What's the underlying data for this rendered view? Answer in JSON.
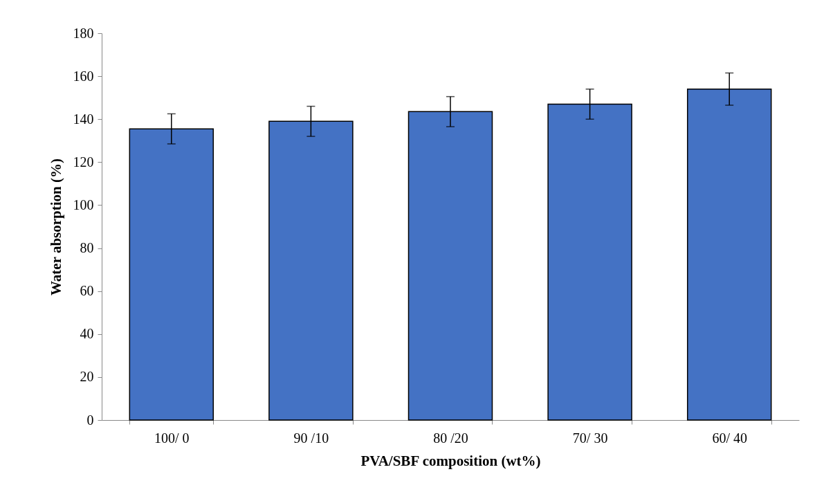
{
  "chart_data": {
    "type": "bar",
    "xlabel": "PVA/SBF composition (wt%)",
    "ylabel": "Water absorption (%)",
    "categories": [
      "100/ 0",
      "90 /10",
      "80 /20",
      "70/ 30",
      "60/ 40"
    ],
    "values": [
      135.5,
      139,
      143.5,
      147,
      154
    ],
    "errors": [
      7,
      7,
      7,
      7,
      7.5
    ],
    "color": "#4472c4",
    "ylim": [
      0,
      180
    ],
    "yticks": [
      0,
      20,
      40,
      60,
      80,
      100,
      120,
      140,
      160,
      180
    ],
    "grid": false
  }
}
